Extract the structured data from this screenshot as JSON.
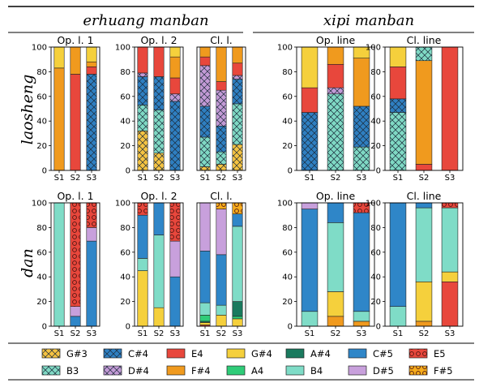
{
  "section_titles": [
    "erhuang manban",
    "xipi manban"
  ],
  "row_labels": [
    "laosheng",
    "dan"
  ],
  "palette": {
    "G#3": "#f5c342",
    "C#4": "#2f7fc1",
    "E4": "#e8473c",
    "G#4": "#f5d03c",
    "A#4": "#1a7a5e",
    "C#5": "#2f86c8",
    "E5": "#e8473c",
    "B3": "#7fd9c4",
    "D#4": "#c39ad6",
    "F#4": "#f09a1e",
    "A4": "#2fcc78",
    "B4": "#7fdcc7",
    "D#5": "#c8a0dc",
    "F#5": "#f6ac1c"
  },
  "patterns": {
    "G#3": "cross",
    "C#4": "cross",
    "B3": "cross",
    "D#4": "cross",
    "E5": "circles",
    "F#5": "circles"
  },
  "legend": [
    [
      "G#3",
      "C#4",
      "E4",
      "G#4",
      "A#4",
      "C#5",
      "E5"
    ],
    [
      "B3",
      "D#4",
      "F#4",
      "A4",
      "B4",
      "D#5",
      "F#5"
    ]
  ],
  "chart_data": [
    {
      "type": "bar",
      "stacked": true,
      "title": "Op. l. 1",
      "categories": [
        "S1",
        "S2",
        "S3"
      ],
      "ylim": [
        0,
        100
      ],
      "yticks": [
        0,
        20,
        40,
        60,
        80,
        100
      ],
      "stacks": [
        [
          [
            "F#4",
            83
          ],
          [
            "G#4",
            17
          ]
        ],
        [
          [
            "E4",
            78
          ],
          [
            "F#4",
            22
          ]
        ],
        [
          [
            "C#4",
            78
          ],
          [
            "E4",
            6
          ],
          [
            "F#4",
            4
          ],
          [
            "G#4",
            12
          ]
        ]
      ]
    },
    {
      "type": "bar",
      "stacked": true,
      "title": "Op. l. 2",
      "categories": [
        "S1",
        "S2",
        "S3"
      ],
      "ylim": [
        0,
        100
      ],
      "yticks": [
        0,
        20,
        40,
        60,
        80,
        100
      ],
      "stacks": [
        [
          [
            "G#3",
            32
          ],
          [
            "B3",
            21
          ],
          [
            "C#4",
            23
          ],
          [
            "D#4",
            3
          ],
          [
            "E4",
            21
          ]
        ],
        [
          [
            "G#3",
            14
          ],
          [
            "B3",
            35
          ],
          [
            "C#4",
            27
          ],
          [
            "E4",
            24
          ]
        ],
        [
          [
            "C#4",
            56
          ],
          [
            "D#4",
            6
          ],
          [
            "E4",
            13
          ],
          [
            "F#4",
            17
          ],
          [
            "G#4",
            8
          ]
        ]
      ]
    },
    {
      "type": "bar",
      "stacked": true,
      "title": "Cl. l.",
      "categories": [
        "S1",
        "S2",
        "S3"
      ],
      "ylim": [
        0,
        100
      ],
      "yticks": [
        0,
        20,
        40,
        60,
        80,
        100
      ],
      "stacks": [
        [
          [
            "G#3",
            3
          ],
          [
            "B3",
            24
          ],
          [
            "C#4",
            25
          ],
          [
            "D#4",
            33
          ],
          [
            "E4",
            7
          ],
          [
            "F#4",
            8
          ]
        ],
        [
          [
            "G#3",
            5
          ],
          [
            "B3",
            10
          ],
          [
            "C#4",
            21
          ],
          [
            "D#4",
            29
          ],
          [
            "E4",
            7
          ],
          [
            "F#4",
            28
          ]
        ],
        [
          [
            "G#3",
            21
          ],
          [
            "B3",
            33
          ],
          [
            "C#4",
            20
          ],
          [
            "D#4",
            3
          ],
          [
            "E4",
            10
          ],
          [
            "F#4",
            13
          ]
        ]
      ]
    },
    {
      "type": "bar",
      "stacked": true,
      "title": "Op. line",
      "categories": [
        "S1",
        "S2",
        "S3"
      ],
      "ylim": [
        0,
        100
      ],
      "yticks": [
        0,
        20,
        40,
        60,
        80,
        100
      ],
      "stacks": [
        [
          [
            "C#4",
            47
          ],
          [
            "E4",
            20
          ],
          [
            "G#4",
            33
          ]
        ],
        [
          [
            "B3",
            62
          ],
          [
            "D#4",
            5
          ],
          [
            "E4",
            19
          ],
          [
            "F#4",
            14
          ]
        ],
        [
          [
            "B3",
            19
          ],
          [
            "C#4",
            33
          ],
          [
            "F#4",
            39
          ],
          [
            "G#4",
            9
          ]
        ]
      ]
    },
    {
      "type": "bar",
      "stacked": true,
      "title": "Cl. line",
      "categories": [
        "S1",
        "S2",
        "S3"
      ],
      "ylim": [
        0,
        100
      ],
      "yticks": [
        0,
        20,
        40,
        60,
        80,
        100
      ],
      "stacks": [
        [
          [
            "B3",
            47
          ],
          [
            "C#4",
            11
          ],
          [
            "E4",
            26
          ],
          [
            "G#4",
            16
          ]
        ],
        [
          [
            "E4",
            5
          ],
          [
            "F#4",
            84
          ],
          [
            "B3",
            11
          ]
        ],
        [
          [
            "E4",
            100
          ]
        ]
      ]
    },
    {
      "type": "bar",
      "stacked": true,
      "title": "Op. l. 1",
      "categories": [
        "S1",
        "S2",
        "S3"
      ],
      "ylim": [
        0,
        100
      ],
      "yticks": [
        0,
        20,
        40,
        60,
        80,
        100
      ],
      "stacks": [
        [
          [
            "B4",
            100
          ]
        ],
        [
          [
            "C#5",
            8
          ],
          [
            "D#5",
            8
          ],
          [
            "E5",
            84
          ]
        ],
        [
          [
            "C#5",
            69
          ],
          [
            "D#5",
            11
          ],
          [
            "E5",
            20
          ]
        ]
      ]
    },
    {
      "type": "bar",
      "stacked": true,
      "title": "Op. l. 2",
      "categories": [
        "S1",
        "S2",
        "S3"
      ],
      "ylim": [
        0,
        100
      ],
      "yticks": [
        0,
        20,
        40,
        60,
        80,
        100
      ],
      "stacks": [
        [
          [
            "G#4",
            45
          ],
          [
            "B4",
            10
          ],
          [
            "C#5",
            35
          ],
          [
            "E5",
            10
          ]
        ],
        [
          [
            "G#4",
            15
          ],
          [
            "B4",
            59
          ],
          [
            "C#5",
            26
          ]
        ],
        [
          [
            "C#5",
            40
          ],
          [
            "D#5",
            29
          ],
          [
            "E5",
            31
          ]
        ]
      ]
    },
    {
      "type": "bar",
      "stacked": true,
      "title": "Cl. l.",
      "categories": [
        "S1",
        "S2",
        "S3"
      ],
      "ylim": [
        0,
        100
      ],
      "yticks": [
        0,
        20,
        40,
        60,
        80,
        100
      ],
      "stacks": [
        [
          [
            "E4",
            1
          ],
          [
            "G#4",
            2
          ],
          [
            "A#4",
            1
          ],
          [
            "A4",
            5
          ],
          [
            "B4",
            10
          ],
          [
            "C#5",
            42
          ],
          [
            "D#5",
            39
          ]
        ],
        [
          [
            "G#4",
            9
          ],
          [
            "B4",
            8
          ],
          [
            "C#5",
            41
          ],
          [
            "D#5",
            37
          ],
          [
            "F#5",
            5
          ]
        ],
        [
          [
            "G#4",
            6
          ],
          [
            "A4",
            2
          ],
          [
            "A#4",
            12
          ],
          [
            "B4",
            61
          ],
          [
            "C#5",
            10
          ],
          [
            "F#5",
            9
          ]
        ]
      ]
    },
    {
      "type": "bar",
      "stacked": true,
      "title": "Op. line",
      "categories": [
        "S1",
        "S2",
        "S3"
      ],
      "ylim": [
        0,
        100
      ],
      "yticks": [
        0,
        20,
        40,
        60,
        80,
        100
      ],
      "stacks": [
        [
          [
            "B4",
            12
          ],
          [
            "C#5",
            83
          ],
          [
            "D#5",
            5
          ]
        ],
        [
          [
            "F#4",
            8
          ],
          [
            "G#4",
            20
          ],
          [
            "B4",
            56
          ],
          [
            "C#5",
            16
          ]
        ],
        [
          [
            "F#4",
            4
          ],
          [
            "B4",
            8
          ],
          [
            "C#5",
            80
          ],
          [
            "E5",
            8
          ]
        ]
      ]
    },
    {
      "type": "bar",
      "stacked": true,
      "title": "Cl. line",
      "categories": [
        "S1",
        "S2",
        "S3"
      ],
      "ylim": [
        0,
        100
      ],
      "yticks": [
        0,
        20,
        40,
        60,
        80,
        100
      ],
      "stacks": [
        [
          [
            "B4",
            16
          ],
          [
            "C#5",
            84
          ]
        ],
        [
          [
            "F#4",
            4
          ],
          [
            "G#4",
            32
          ],
          [
            "B4",
            60
          ],
          [
            "C#5",
            4
          ]
        ],
        [
          [
            "E4",
            36
          ],
          [
            "G#4",
            8
          ],
          [
            "B4",
            52
          ],
          [
            "E5",
            4
          ]
        ]
      ]
    }
  ]
}
